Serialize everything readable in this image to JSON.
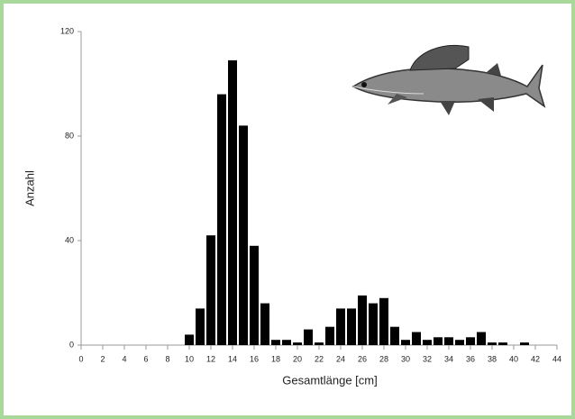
{
  "chart_data": {
    "type": "histogram",
    "xlabel": "Gesamtlänge [cm]",
    "ylabel": "Anzahl",
    "bins": [
      9.5,
      10.5,
      11.5,
      12.5,
      13.5,
      14.5,
      15.5,
      16.5,
      17.5,
      18.5,
      19.5,
      20.5,
      21.5,
      22.5,
      23.5,
      24.5,
      25.5,
      26.5,
      27.5,
      28.5,
      29.5,
      30.5,
      31.5,
      32.5,
      33.5,
      34.5,
      35.5,
      36.5,
      37.5,
      38.5,
      39.5,
      40.5,
      41.5
    ],
    "values": [
      4,
      14,
      42,
      96,
      109,
      84,
      38,
      16,
      2,
      2,
      1,
      6,
      1,
      7,
      14,
      14,
      19,
      16,
      18,
      7,
      2,
      5,
      2,
      3,
      3,
      2,
      3,
      5,
      1,
      1,
      0,
      1
    ],
    "color": "#000000",
    "xlim": [
      0,
      44
    ],
    "xticks": [
      0,
      2,
      4,
      6,
      8,
      10,
      12,
      14,
      16,
      18,
      20,
      22,
      24,
      26,
      28,
      30,
      32,
      34,
      36,
      38,
      40,
      42,
      44
    ],
    "ylim": [
      0,
      120
    ],
    "yticks": [
      0,
      40,
      80,
      120
    ],
    "grid": false
  }
}
